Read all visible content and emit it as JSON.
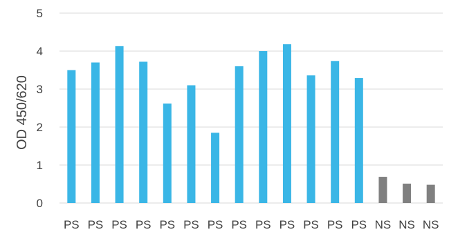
{
  "chart_data": {
    "type": "bar",
    "title": "",
    "xlabel": "",
    "ylabel": "OD 450/620",
    "ylim": [
      0,
      5
    ],
    "yticks": [
      "0",
      "1",
      "2",
      "3",
      "4",
      "5"
    ],
    "grid": true,
    "legend": "none",
    "categories": [
      "PS",
      "PS",
      "PS",
      "PS",
      "PS",
      "PS",
      "PS",
      "PS",
      "PS",
      "PS",
      "PS",
      "PS",
      "PS",
      "NS",
      "NS",
      "NS"
    ],
    "values": [
      3.5,
      3.7,
      4.13,
      3.72,
      2.62,
      3.1,
      1.85,
      3.6,
      4.0,
      4.18,
      3.36,
      3.74,
      3.29,
      0.69,
      0.51,
      0.48
    ],
    "colors": {
      "PS": "#3ab6e6",
      "NS": "#808080"
    }
  }
}
